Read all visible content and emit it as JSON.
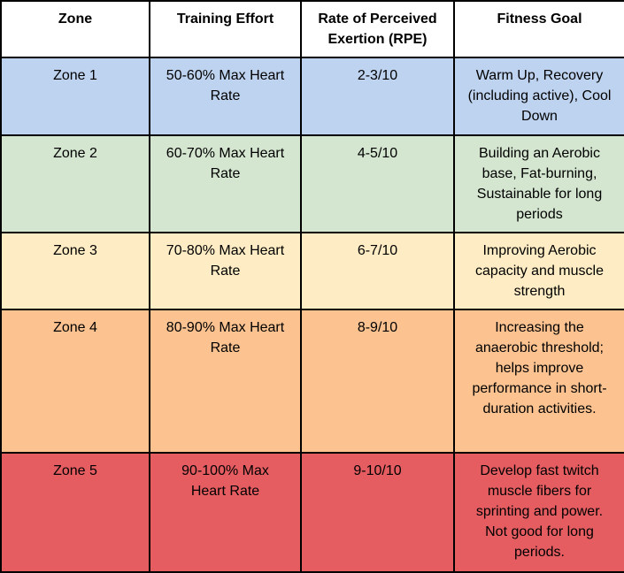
{
  "colors": {
    "border": "#000000",
    "header_bg": "#ffffff",
    "text": "#000000",
    "zone1_bg": "#bed3f0",
    "zone2_bg": "#d4e6d0",
    "zone3_bg": "#feecc4",
    "zone4_bg": "#fcc290",
    "zone5_bg": "#e55d60"
  },
  "chart_data": {
    "type": "table",
    "columns": [
      "Zone",
      "Training Effort",
      "Rate of Perceived Exertion (RPE)",
      "Fitness Goal"
    ],
    "rows": [
      {
        "zone": "Zone 1",
        "training_effort": "50-60% Max Heart Rate",
        "rpe": "2-3/10",
        "fitness_goal": "Warm Up, Recovery (including active), Cool Down",
        "bg": "#bed3f0"
      },
      {
        "zone": "Zone 2",
        "training_effort": "60-70% Max Heart Rate",
        "rpe": "4-5/10",
        "fitness_goal": "Building an Aerobic base, Fat-burning, Sustainable for long periods",
        "bg": "#d4e6d0"
      },
      {
        "zone": "Zone 3",
        "training_effort": "70-80% Max Heart Rate",
        "rpe": "6-7/10",
        "fitness_goal": "Improving Aerobic capacity and muscle strength",
        "bg": "#feecc4"
      },
      {
        "zone": "Zone 4",
        "training_effort": "80-90% Max Heart Rate",
        "rpe": "8-9/10",
        "fitness_goal": "Increasing the anaerobic threshold; helps improve performance in short-duration activities.",
        "bg": "#fcc290"
      },
      {
        "zone": "Zone 5",
        "training_effort": "90-100% Max Heart Rate",
        "rpe": "9-10/10",
        "fitness_goal": "Develop fast twitch muscle fibers for sprinting and power. Not good for long periods.",
        "bg": "#e55d60"
      }
    ],
    "layout": {
      "grid": "on",
      "header_position": "top",
      "cell_text_align": "center"
    }
  }
}
